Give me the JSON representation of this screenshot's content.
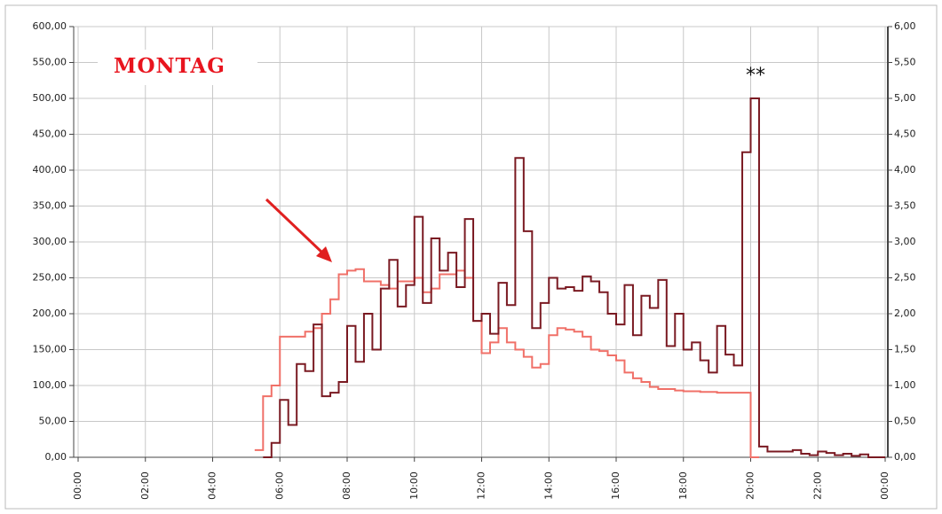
{
  "chart_data": {
    "type": "step",
    "annotations": [
      "MONTAG",
      "**"
    ],
    "xlim": [
      0,
      24
    ],
    "xticks": [
      {
        "value": 0,
        "label": "00:00"
      },
      {
        "value": 2,
        "label": "02:00"
      },
      {
        "value": 4,
        "label": "04:00"
      },
      {
        "value": 6,
        "label": "06:00"
      },
      {
        "value": 8,
        "label": "08:00"
      },
      {
        "value": 10,
        "label": "10:00"
      },
      {
        "value": 12,
        "label": "12:00"
      },
      {
        "value": 14,
        "label": "14:00"
      },
      {
        "value": 16,
        "label": "16:00"
      },
      {
        "value": 18,
        "label": "18:00"
      },
      {
        "value": 20,
        "label": "20:00"
      },
      {
        "value": 22,
        "label": "22:00"
      },
      {
        "value": 24,
        "label": "00:00"
      }
    ],
    "ylim": [
      0,
      600
    ],
    "yticks": [
      {
        "value": 0,
        "label": "0,00"
      },
      {
        "value": 50,
        "label": "50,00"
      },
      {
        "value": 100,
        "label": "100,00"
      },
      {
        "value": 150,
        "label": "150,00"
      },
      {
        "value": 200,
        "label": "200,00"
      },
      {
        "value": 250,
        "label": "250,00"
      },
      {
        "value": 300,
        "label": "300,00"
      },
      {
        "value": 350,
        "label": "350,00"
      },
      {
        "value": 400,
        "label": "400,00"
      },
      {
        "value": 450,
        "label": "450,00"
      },
      {
        "value": 500,
        "label": "500,00"
      },
      {
        "value": 550,
        "label": "550,00"
      },
      {
        "value": 600,
        "label": "600,00"
      }
    ],
    "y2lim": [
      0,
      6
    ],
    "y2ticks": [
      {
        "value": 0,
        "label": "0,00"
      },
      {
        "value": 0.5,
        "label": "0,50"
      },
      {
        "value": 1,
        "label": "1,00"
      },
      {
        "value": 1.5,
        "label": "1,50"
      },
      {
        "value": 2,
        "label": "2,00"
      },
      {
        "value": 2.5,
        "label": "2,50"
      },
      {
        "value": 3,
        "label": "3,00"
      },
      {
        "value": 3.5,
        "label": "3,50"
      },
      {
        "value": 4,
        "label": "4,00"
      },
      {
        "value": 4.5,
        "label": "4,50"
      },
      {
        "value": 5,
        "label": "5,00"
      },
      {
        "value": 5.5,
        "label": "5,50"
      },
      {
        "value": 6,
        "label": "6,00"
      }
    ],
    "grid": true,
    "series": [
      {
        "color": "#f07068",
        "axis": "y2",
        "x": [
          5.25,
          5.5,
          5.75,
          6,
          6.25,
          6.5,
          6.75,
          7,
          7.25,
          7.5,
          7.75,
          8,
          8.25,
          8.5,
          8.75,
          9,
          9.25,
          9.5,
          9.75,
          10,
          10.25,
          10.5,
          10.75,
          11,
          11.25,
          11.5,
          11.75,
          12,
          12.25,
          12.5,
          12.75,
          13,
          13.25,
          13.5,
          13.75,
          14,
          14.25,
          14.5,
          14.75,
          15,
          15.25,
          15.5,
          15.75,
          16,
          16.25,
          16.5,
          16.75,
          17,
          17.25,
          17.5,
          17.75,
          18,
          18.25,
          18.5,
          18.75,
          19,
          19.25,
          19.5,
          19.75,
          20
        ],
        "values": [
          0.1,
          0.85,
          1.0,
          1.68,
          1.68,
          1.68,
          1.75,
          1.8,
          2.0,
          2.2,
          2.55,
          2.6,
          2.62,
          2.45,
          2.45,
          2.4,
          2.35,
          2.45,
          2.45,
          2.5,
          2.3,
          2.35,
          2.55,
          2.55,
          2.6,
          2.5,
          1.9,
          1.45,
          1.6,
          1.8,
          1.6,
          1.5,
          1.4,
          1.25,
          1.3,
          1.7,
          1.8,
          1.78,
          1.75,
          1.68,
          1.5,
          1.48,
          1.42,
          1.35,
          1.18,
          1.1,
          1.05,
          0.98,
          0.95,
          0.95,
          0.93,
          0.92,
          0.92,
          0.91,
          0.91,
          0.9,
          0.9,
          0.9,
          0.9,
          0
        ]
      },
      {
        "color": "#7a1a22",
        "x": [
          5.5,
          5.75,
          6,
          6.25,
          6.5,
          6.75,
          7,
          7.25,
          7.5,
          7.75,
          8,
          8.25,
          8.5,
          8.75,
          9,
          9.25,
          9.5,
          9.75,
          10,
          10.25,
          10.5,
          10.75,
          11,
          11.25,
          11.5,
          11.75,
          12,
          12.25,
          12.5,
          12.75,
          13,
          13.25,
          13.5,
          13.75,
          14,
          14.25,
          14.5,
          14.75,
          15,
          15.25,
          15.5,
          15.75,
          16,
          16.25,
          16.5,
          16.75,
          17,
          17.25,
          17.5,
          17.75,
          18,
          18.25,
          18.5,
          18.75,
          19,
          19.25,
          19.5,
          19.75,
          20,
          20.25,
          20.5,
          20.75,
          21,
          21.25,
          21.5,
          21.75,
          22,
          22.25,
          22.5,
          22.75,
          23,
          23.25,
          23.5,
          23.75
        ],
        "values": [
          0,
          20,
          80,
          45,
          130,
          120,
          185,
          85,
          90,
          105,
          183,
          133,
          200,
          150,
          235,
          275,
          210,
          240,
          335,
          215,
          305,
          260,
          285,
          237,
          332,
          190,
          200,
          172,
          243,
          212,
          417,
          315,
          180,
          215,
          250,
          235,
          237,
          232,
          252,
          245,
          230,
          200,
          185,
          240,
          170,
          225,
          208,
          247,
          155,
          200,
          150,
          160,
          135,
          118,
          183,
          143,
          128,
          425,
          500,
          15,
          8,
          8,
          8,
          10,
          5,
          3,
          8,
          6,
          3,
          5,
          2,
          4,
          0,
          0
        ]
      }
    ]
  }
}
